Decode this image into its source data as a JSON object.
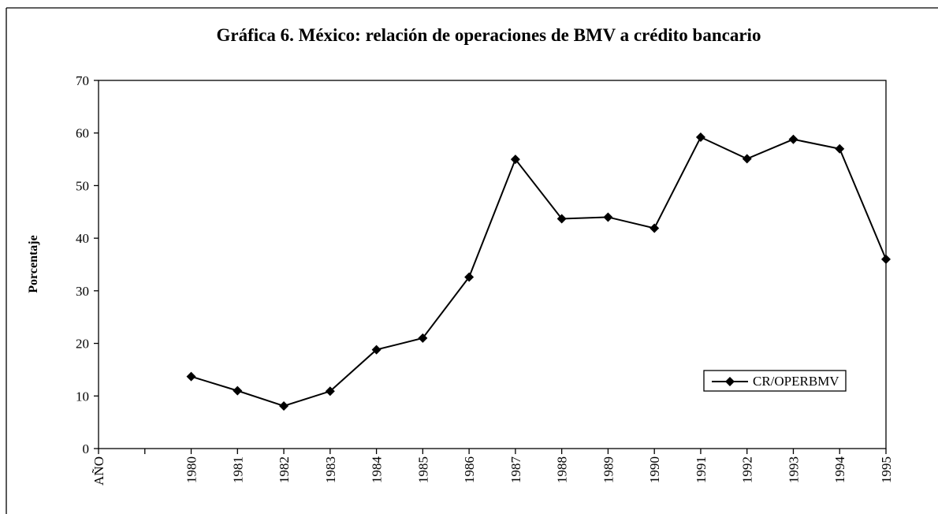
{
  "chart_data": {
    "type": "line",
    "title": "Gráfica 6. México: relación de operaciones de BMV a crédito bancario",
    "y_label": "Porcentaje",
    "categories": [
      "AÑO",
      null,
      "1980",
      "1981",
      "1982",
      "1983",
      "1984",
      "1985",
      "1986",
      "1987",
      "1988",
      "1989",
      "1990",
      "1991",
      "1992",
      "1993",
      "1994",
      "1995"
    ],
    "series": [
      {
        "name": "CR/OPERBMV",
        "color": "#000000",
        "values": [
          null,
          null,
          13.7,
          11,
          8.1,
          10.9,
          18.8,
          21,
          32.6,
          55,
          43.7,
          44,
          41.9,
          59.2,
          55.1,
          58.8,
          57,
          36
        ]
      }
    ],
    "ylim": [
      0,
      70
    ],
    "yticks": [
      0,
      10,
      20,
      30,
      40,
      50,
      60,
      70
    ],
    "grid": false,
    "legend": "lower right"
  }
}
